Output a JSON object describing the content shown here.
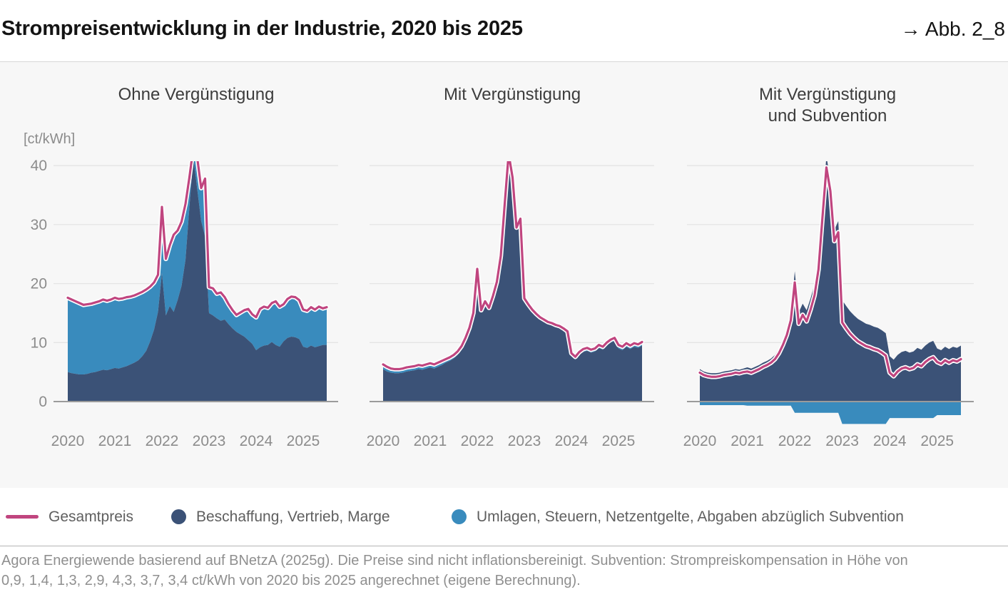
{
  "header": {
    "title": "Strompreisentwicklung in der Industrie, 2020 bis 2025",
    "figure_ref": "→ Abb. 2_8"
  },
  "y_axis": {
    "unit_label": "[ct/kWh]",
    "ticks": [
      0,
      10,
      20,
      30,
      40
    ]
  },
  "x_axis": {
    "year_labels": [
      "2020",
      "2021",
      "2022",
      "2023",
      "2024",
      "2025"
    ],
    "interval": "monthly",
    "start": "2020-01",
    "end": "2025-07"
  },
  "legend": {
    "items": [
      {
        "label": "Gesamtpreis",
        "swatch": "line",
        "color": "#c0457f"
      },
      {
        "label": "Beschaffung, Vertrieb, Marge",
        "swatch": "dot",
        "color": "#3b5277"
      },
      {
        "label": "Umlagen, Steuern, Netzentgelte, Abgaben abzüglich Subvention",
        "swatch": "dot",
        "color": "#398bbd"
      }
    ]
  },
  "colors": {
    "total_line": "#c0457f",
    "line_halo": "#ffffff",
    "procurement": "#3b5277",
    "levies": "#398bbd",
    "panel_bg": "#f7f7f7",
    "grid": "#e4e4e4",
    "axis": "#9b9b9b",
    "muted_text": "#8c8c8c"
  },
  "footnote": {
    "line1": "Agora Energiewende basierend auf BNetzA (2025g). Die Preise sind nicht inflationsbereinigt. Subvention: Strompreiskompensation in Höhe von",
    "line2": "0,9, 1,4, 1,3, 2,9, 4,3, 3,7, 3,4 ct/kWh von 2020 bis 2025 angerechnet (eigene Berechnung)."
  },
  "chart_data": [
    {
      "type": "area",
      "title": "Ohne Vergünstigung",
      "title_lines": [
        "Ohne Vergünstigung"
      ],
      "unit": "ct/kWh",
      "ylim": [
        0,
        40
      ],
      "series": [
        {
          "name": "Gesamtpreis",
          "role": "total_line",
          "values": [
            17.6,
            17.3,
            17.0,
            16.7,
            16.4,
            16.5,
            16.6,
            16.8,
            17.0,
            17.3,
            17.1,
            17.3,
            17.6,
            17.4,
            17.5,
            17.7,
            17.8,
            18.0,
            18.3,
            18.6,
            19.0,
            19.5,
            20.2,
            21.5,
            33.0,
            24.2,
            26.5,
            28.3,
            29.0,
            30.5,
            33.5,
            38.0,
            43.0,
            41.3,
            36.2,
            37.8,
            19.4,
            19.2,
            18.3,
            18.5,
            17.7,
            16.5,
            15.5,
            14.7,
            15.1,
            15.5,
            15.7,
            14.8,
            14.3,
            15.7,
            16.1,
            15.9,
            16.7,
            17.0,
            16.1,
            16.5,
            17.4,
            17.8,
            17.7,
            17.2,
            15.6,
            15.4,
            16.0,
            15.6,
            16.1,
            15.8,
            16.0
          ]
        },
        {
          "name": "Beschaffung, Vertrieb, Marge",
          "role": "procurement_area",
          "values": [
            5.0,
            4.8,
            4.7,
            4.6,
            4.6,
            4.7,
            4.9,
            5.0,
            5.2,
            5.4,
            5.3,
            5.5,
            5.7,
            5.6,
            5.8,
            6.0,
            6.3,
            6.6,
            7.0,
            7.7,
            8.6,
            10.2,
            12.2,
            15.2,
            21.8,
            14.6,
            16.2,
            15.2,
            17.2,
            19.6,
            24.0,
            33.0,
            41.5,
            36.0,
            30.6,
            28.0,
            15.0,
            14.6,
            14.1,
            13.7,
            13.9,
            13.1,
            12.4,
            11.8,
            11.4,
            11.0,
            10.4,
            9.8,
            8.7,
            9.2,
            9.5,
            9.6,
            10.1,
            9.6,
            9.3,
            10.2,
            10.8,
            11.0,
            10.9,
            10.6,
            9.3,
            9.1,
            9.5,
            9.2,
            9.4,
            9.6,
            9.6
          ]
        },
        {
          "name": "Umlagen, Steuern, Netzentgelte, Abgaben abzüglich Subvention",
          "role": "levies_area",
          "values": [
            12.6,
            12.5,
            12.3,
            12.1,
            11.8,
            11.8,
            11.7,
            11.8,
            11.8,
            11.9,
            11.8,
            11.8,
            11.9,
            11.8,
            11.7,
            11.7,
            11.5,
            11.4,
            11.3,
            10.9,
            10.4,
            9.3,
            8.0,
            6.3,
            11.2,
            9.6,
            10.3,
            13.1,
            11.8,
            10.9,
            9.5,
            5.0,
            1.5,
            5.3,
            5.6,
            9.8,
            4.4,
            4.6,
            4.2,
            4.8,
            3.8,
            3.4,
            3.1,
            2.9,
            3.7,
            4.5,
            5.3,
            5.0,
            5.6,
            6.5,
            6.6,
            6.3,
            6.6,
            7.4,
            6.8,
            6.3,
            6.6,
            6.8,
            6.8,
            6.6,
            6.3,
            6.3,
            6.5,
            6.4,
            6.7,
            6.2,
            6.4
          ]
        }
      ]
    },
    {
      "type": "area",
      "title": "Mit Vergünstigung",
      "title_lines": [
        "Mit Vergünstigung"
      ],
      "unit": "ct/kWh",
      "ylim": [
        0,
        40
      ],
      "series": [
        {
          "name": "Gesamtpreis",
          "role": "total_line",
          "values": [
            6.3,
            5.9,
            5.6,
            5.5,
            5.5,
            5.6,
            5.8,
            5.9,
            6.0,
            6.2,
            6.1,
            6.3,
            6.5,
            6.3,
            6.6,
            6.9,
            7.2,
            7.5,
            7.9,
            8.5,
            9.4,
            10.8,
            12.5,
            15.0,
            22.5,
            15.5,
            17.0,
            15.9,
            17.9,
            20.3,
            24.7,
            33.5,
            42.0,
            38.0,
            29.5,
            31.0,
            17.5,
            16.5,
            15.6,
            14.9,
            14.3,
            13.9,
            13.5,
            13.3,
            13.0,
            12.8,
            12.4,
            11.9,
            8.2,
            7.6,
            8.4,
            8.9,
            9.1,
            8.8,
            9.0,
            9.6,
            9.3,
            10.0,
            10.5,
            10.8,
            9.6,
            9.3,
            9.9,
            9.5,
            9.9,
            9.7,
            10.1
          ]
        },
        {
          "name": "Beschaffung, Vertrieb, Marge",
          "role": "procurement_area",
          "values": [
            5.5,
            5.1,
            4.9,
            4.8,
            4.8,
            4.9,
            5.1,
            5.2,
            5.3,
            5.5,
            5.4,
            5.6,
            5.8,
            5.6,
            5.9,
            6.2,
            6.6,
            6.9,
            7.3,
            7.9,
            8.9,
            10.3,
            12.0,
            14.5,
            22.1,
            15.1,
            16.6,
            15.5,
            17.5,
            19.9,
            24.3,
            33.1,
            41.6,
            37.6,
            29.1,
            30.6,
            17.2,
            16.2,
            15.3,
            14.6,
            14.0,
            13.6,
            13.2,
            13.0,
            12.7,
            12.5,
            12.1,
            11.6,
            7.7,
            7.1,
            7.9,
            8.4,
            8.6,
            8.3,
            8.5,
            9.1,
            8.8,
            9.5,
            10.0,
            10.3,
            9.0,
            8.7,
            9.3,
            8.9,
            9.3,
            9.1,
            9.5
          ]
        },
        {
          "name": "Umlagen, Steuern, Netzentgelte, Abgaben abzüglich Subvention",
          "role": "levies_area",
          "values": [
            0.8,
            0.8,
            0.7,
            0.7,
            0.7,
            0.7,
            0.7,
            0.7,
            0.7,
            0.7,
            0.7,
            0.7,
            0.7,
            0.7,
            0.7,
            0.7,
            0.6,
            0.6,
            0.6,
            0.6,
            0.5,
            0.5,
            0.5,
            0.5,
            0.4,
            0.4,
            0.4,
            0.4,
            0.4,
            0.4,
            0.4,
            0.4,
            0.4,
            0.4,
            0.4,
            0.4,
            0.3,
            0.3,
            0.3,
            0.3,
            0.3,
            0.3,
            0.3,
            0.3,
            0.3,
            0.3,
            0.3,
            0.3,
            0.5,
            0.5,
            0.5,
            0.5,
            0.5,
            0.5,
            0.5,
            0.5,
            0.5,
            0.5,
            0.5,
            0.5,
            0.6,
            0.6,
            0.6,
            0.6,
            0.6,
            0.6,
            0.6
          ]
        }
      ]
    },
    {
      "type": "area",
      "title": "Mit Vergünstigung und Subvention",
      "title_lines": [
        "Mit Vergünstigung",
        "und Subvention"
      ],
      "unit": "ct/kWh",
      "ylim": [
        0,
        40
      ],
      "series": [
        {
          "name": "Gesamtpreis",
          "role": "total_line",
          "values": [
            4.9,
            4.5,
            4.3,
            4.2,
            4.2,
            4.3,
            4.5,
            4.6,
            4.7,
            4.9,
            4.8,
            5.0,
            5.1,
            4.9,
            5.2,
            5.5,
            5.9,
            6.2,
            6.6,
            7.2,
            8.2,
            9.6,
            11.3,
            13.8,
            20.2,
            13.2,
            14.7,
            13.6,
            15.6,
            18.0,
            22.4,
            31.2,
            39.7,
            35.7,
            27.2,
            28.7,
            13.4,
            12.4,
            11.5,
            10.8,
            10.2,
            9.8,
            9.4,
            9.2,
            8.9,
            8.7,
            8.3,
            7.8,
            4.9,
            4.3,
            5.1,
            5.6,
            5.8,
            5.5,
            5.7,
            6.3,
            6.0,
            6.7,
            7.2,
            7.5,
            6.7,
            6.4,
            7.0,
            6.6,
            7.0,
            6.8,
            7.2
          ]
        },
        {
          "name": "Beschaffung, Vertrieb, Marge",
          "role": "procurement_area",
          "values": [
            5.5,
            5.1,
            4.9,
            4.8,
            4.8,
            4.9,
            5.1,
            5.2,
            5.3,
            5.5,
            5.4,
            5.6,
            5.8,
            5.6,
            5.9,
            6.2,
            6.6,
            6.9,
            7.3,
            7.9,
            8.9,
            10.3,
            12.0,
            14.5,
            22.1,
            15.1,
            16.6,
            15.5,
            17.5,
            19.9,
            24.3,
            33.1,
            41.6,
            37.6,
            29.1,
            30.6,
            17.2,
            16.2,
            15.3,
            14.6,
            14.0,
            13.6,
            13.2,
            13.0,
            12.7,
            12.5,
            12.1,
            11.6,
            7.7,
            7.1,
            7.9,
            8.4,
            8.6,
            8.3,
            8.5,
            9.1,
            8.8,
            9.5,
            10.0,
            10.3,
            9.0,
            8.7,
            9.3,
            8.9,
            9.3,
            9.1,
            9.5
          ]
        },
        {
          "name": "Umlagen, Steuern, Netzentgelte, Abgaben abzüglich Subvention",
          "role": "levies_area",
          "values": [
            -0.6,
            -0.6,
            -0.6,
            -0.6,
            -0.6,
            -0.6,
            -0.6,
            -0.6,
            -0.6,
            -0.6,
            -0.6,
            -0.6,
            -0.7,
            -0.7,
            -0.7,
            -0.7,
            -0.7,
            -0.7,
            -0.7,
            -0.7,
            -0.7,
            -0.7,
            -0.7,
            -0.7,
            -1.9,
            -1.9,
            -1.9,
            -1.9,
            -1.9,
            -1.9,
            -1.9,
            -1.9,
            -1.9,
            -1.9,
            -1.9,
            -1.9,
            -3.8,
            -3.8,
            -3.8,
            -3.8,
            -3.8,
            -3.8,
            -3.8,
            -3.8,
            -3.8,
            -3.8,
            -3.8,
            -3.8,
            -2.8,
            -2.8,
            -2.8,
            -2.8,
            -2.8,
            -2.8,
            -2.8,
            -2.8,
            -2.8,
            -2.8,
            -2.8,
            -2.8,
            -2.3,
            -2.3,
            -2.3,
            -2.3,
            -2.3,
            -2.3,
            -2.3
          ]
        }
      ]
    }
  ]
}
